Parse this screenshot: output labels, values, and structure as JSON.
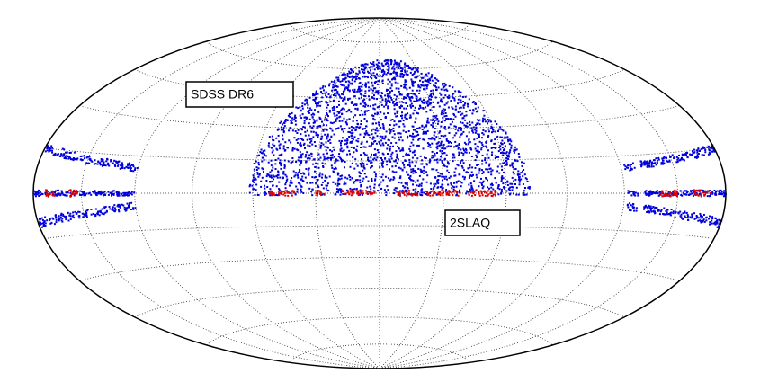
{
  "labels": [
    "SDSS DR6",
    "2SLAQ"
  ]
}
